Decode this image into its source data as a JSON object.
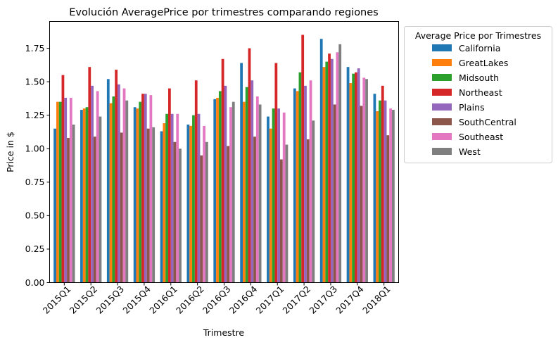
{
  "chart_data": {
    "type": "bar",
    "title": "Evolución AveragePrice por trimestres comparando regiones",
    "xlabel": "Trimestre",
    "ylabel": "Price in $",
    "ylim": [
      0,
      1.95
    ],
    "yticks": [
      0.0,
      0.25,
      0.5,
      0.75,
      1.0,
      1.25,
      1.5,
      1.75
    ],
    "ytick_labels": [
      "0.00",
      "0.25",
      "0.50",
      "0.75",
      "1.00",
      "1.25",
      "1.50",
      "1.75"
    ],
    "grid": false,
    "legend_title": "Average Price por Trimestres",
    "legend_placement": "outside right, top",
    "categories": [
      "2015Q1",
      "2015Q2",
      "2015Q3",
      "2015Q4",
      "2016Q1",
      "2016Q2",
      "2016Q3",
      "2016Q4",
      "2017Q1",
      "2017Q2",
      "2017Q3",
      "2017Q4",
      "2018Q1"
    ],
    "series": [
      {
        "name": "California",
        "color": "#1f77b4",
        "values": [
          1.15,
          1.29,
          1.52,
          1.31,
          1.13,
          1.18,
          1.37,
          1.64,
          1.24,
          1.45,
          1.82,
          1.61,
          1.41
        ]
      },
      {
        "name": "GreatLakes",
        "color": "#ff7f0e",
        "values": [
          1.35,
          1.3,
          1.34,
          1.3,
          1.19,
          1.17,
          1.38,
          1.35,
          1.15,
          1.43,
          1.61,
          1.49,
          1.28
        ]
      },
      {
        "name": "Midsouth",
        "color": "#2ca02c",
        "values": [
          1.35,
          1.31,
          1.39,
          1.35,
          1.26,
          1.25,
          1.43,
          1.46,
          1.3,
          1.57,
          1.65,
          1.56,
          1.36
        ]
      },
      {
        "name": "Northeast",
        "color": "#d62728",
        "values": [
          1.55,
          1.61,
          1.59,
          1.41,
          1.45,
          1.51,
          1.67,
          1.75,
          1.64,
          1.85,
          1.71,
          1.57,
          1.47
        ]
      },
      {
        "name": "Plains",
        "color": "#9467bd",
        "values": [
          1.38,
          1.47,
          1.48,
          1.41,
          1.26,
          1.26,
          1.47,
          1.51,
          1.3,
          1.47,
          1.67,
          1.6,
          1.36
        ]
      },
      {
        "name": "SouthCentral",
        "color": "#8c564b",
        "values": [
          1.08,
          1.09,
          1.12,
          1.15,
          1.05,
          0.95,
          1.02,
          1.09,
          0.92,
          1.07,
          1.33,
          1.32,
          1.1
        ]
      },
      {
        "name": "Southeast",
        "color": "#e377c2",
        "values": [
          1.38,
          1.43,
          1.45,
          1.4,
          1.26,
          1.17,
          1.31,
          1.39,
          1.27,
          1.51,
          1.72,
          1.53,
          1.3
        ]
      },
      {
        "name": "West",
        "color": "#7f7f7f",
        "values": [
          1.18,
          1.24,
          1.36,
          1.16,
          1.0,
          1.05,
          1.35,
          1.33,
          1.03,
          1.21,
          1.78,
          1.52,
          1.29
        ]
      }
    ]
  }
}
